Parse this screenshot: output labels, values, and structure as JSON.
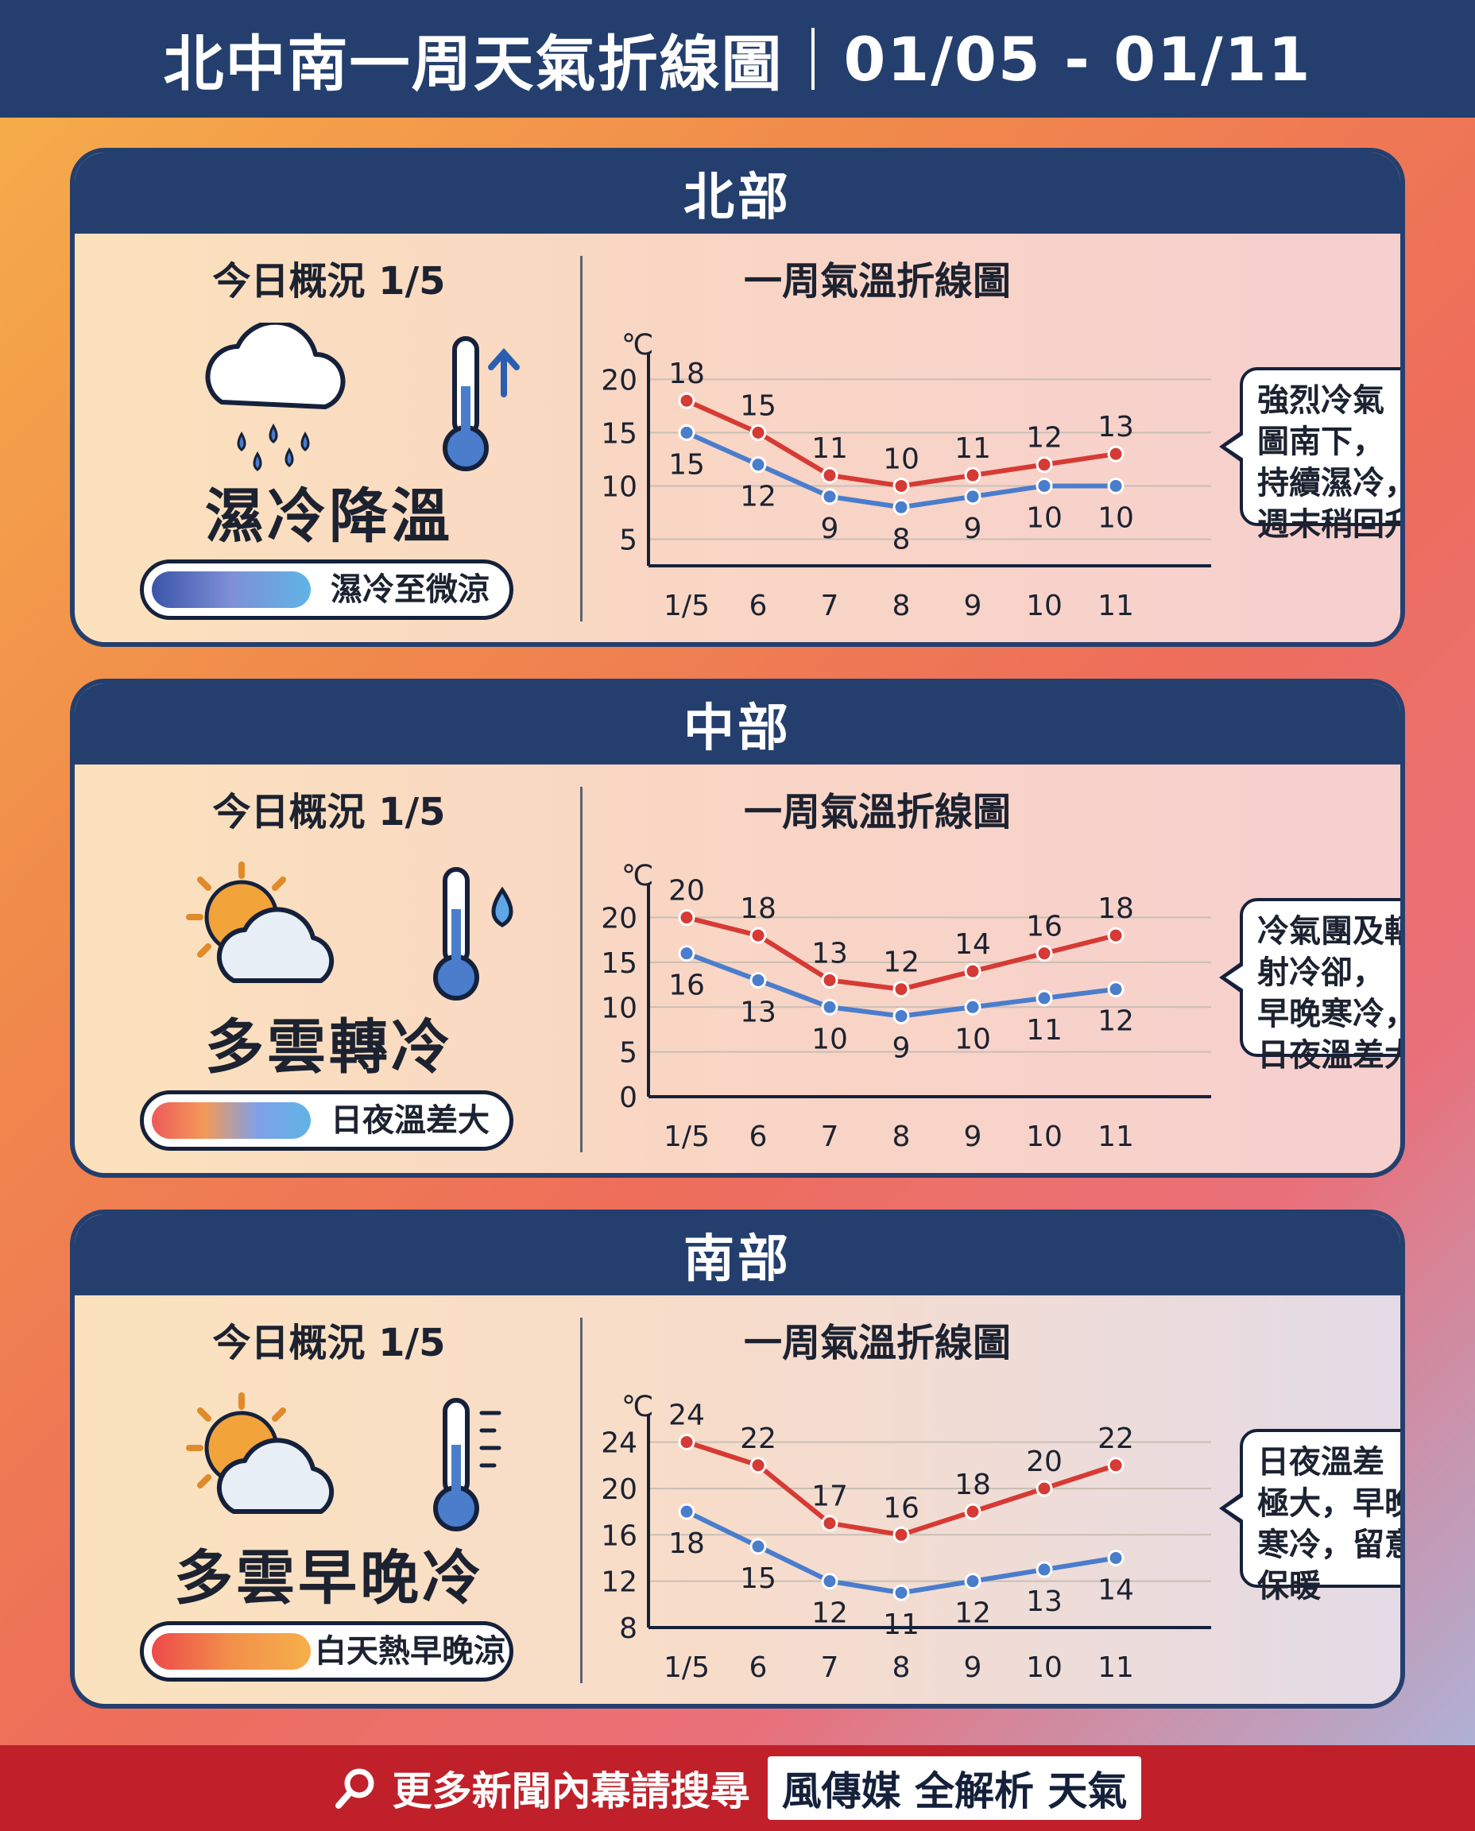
{
  "header": {
    "title": "北中南一周天氣折線圖",
    "range": "01/05 - 01/11"
  },
  "regions": [
    {
      "name": "北部",
      "today_label": "今日概況 1/5",
      "summary": "濕冷降溫",
      "pill_text": "濕冷至微涼",
      "callout": [
        "強烈冷氣",
        "圖南下，",
        "持續濕冷，",
        "週末稍回升"
      ]
    },
    {
      "name": "中部",
      "today_label": "今日概況 1/5",
      "summary": "多雲轉冷",
      "pill_text": "日夜溫差大",
      "callout": [
        "冷氣團及輻",
        "射冷卻，",
        "早晚寒冷，",
        "日夜溫差大"
      ]
    },
    {
      "name": "南部",
      "today_label": "今日概況 1/5",
      "summary": "多雲早晚冷",
      "pill_text": "白天熱早晚涼",
      "callout": [
        "日夜溫差",
        "極大，早晚",
        "寒冷，留意",
        "保暖"
      ]
    }
  ],
  "chart_data": [
    {
      "type": "line",
      "title": "一周氣溫折線圖",
      "ylabel": "℃",
      "categories": [
        "1/5",
        "6",
        "7",
        "8",
        "9",
        "10",
        "11"
      ],
      "yticks": [
        5,
        10,
        15,
        20
      ],
      "ylim": [
        2.5,
        21
      ],
      "series": [
        {
          "values": [
            18,
            15,
            11,
            10,
            11,
            12,
            13
          ],
          "color": "#d63a34"
        },
        {
          "values": [
            15,
            12,
            9,
            8,
            9,
            10,
            10
          ],
          "color": "#4a7dcc"
        }
      ]
    },
    {
      "type": "line",
      "title": "一周氣溫折線圖",
      "ylabel": "℃",
      "categories": [
        "1/5",
        "6",
        "7",
        "8",
        "9",
        "10",
        "11"
      ],
      "yticks": [
        0,
        5,
        10,
        15,
        20
      ],
      "ylim": [
        0,
        22
      ],
      "series": [
        {
          "values": [
            20,
            18,
            13,
            12,
            14,
            16,
            18
          ],
          "color": "#d63a34"
        },
        {
          "values": [
            16,
            13,
            10,
            9,
            10,
            11,
            12
          ],
          "color": "#4a7dcc"
        }
      ]
    },
    {
      "type": "line",
      "title": "一周氣溫折線圖",
      "ylabel": "℃",
      "categories": [
        "1/5",
        "6",
        "7",
        "8",
        "9",
        "10",
        "11"
      ],
      "yticks": [
        8,
        12,
        16,
        20,
        24
      ],
      "ylim": [
        8,
        25
      ],
      "series": [
        {
          "values": [
            24,
            22,
            17,
            16,
            18,
            20,
            22
          ],
          "color": "#d63a34"
        },
        {
          "values": [
            18,
            15,
            12,
            11,
            12,
            13,
            14
          ],
          "color": "#4a7dcc"
        }
      ]
    }
  ],
  "footer": {
    "prompt": "更多新聞內幕請搜尋",
    "brand": "風傳媒 全解析 天氣"
  },
  "icons": [
    "rain-cloud-icon",
    "thermometer-up-icon",
    "sun-cloud-icon",
    "thermometer-drop-icon",
    "thermometer-scale-icon",
    "search-icon"
  ]
}
